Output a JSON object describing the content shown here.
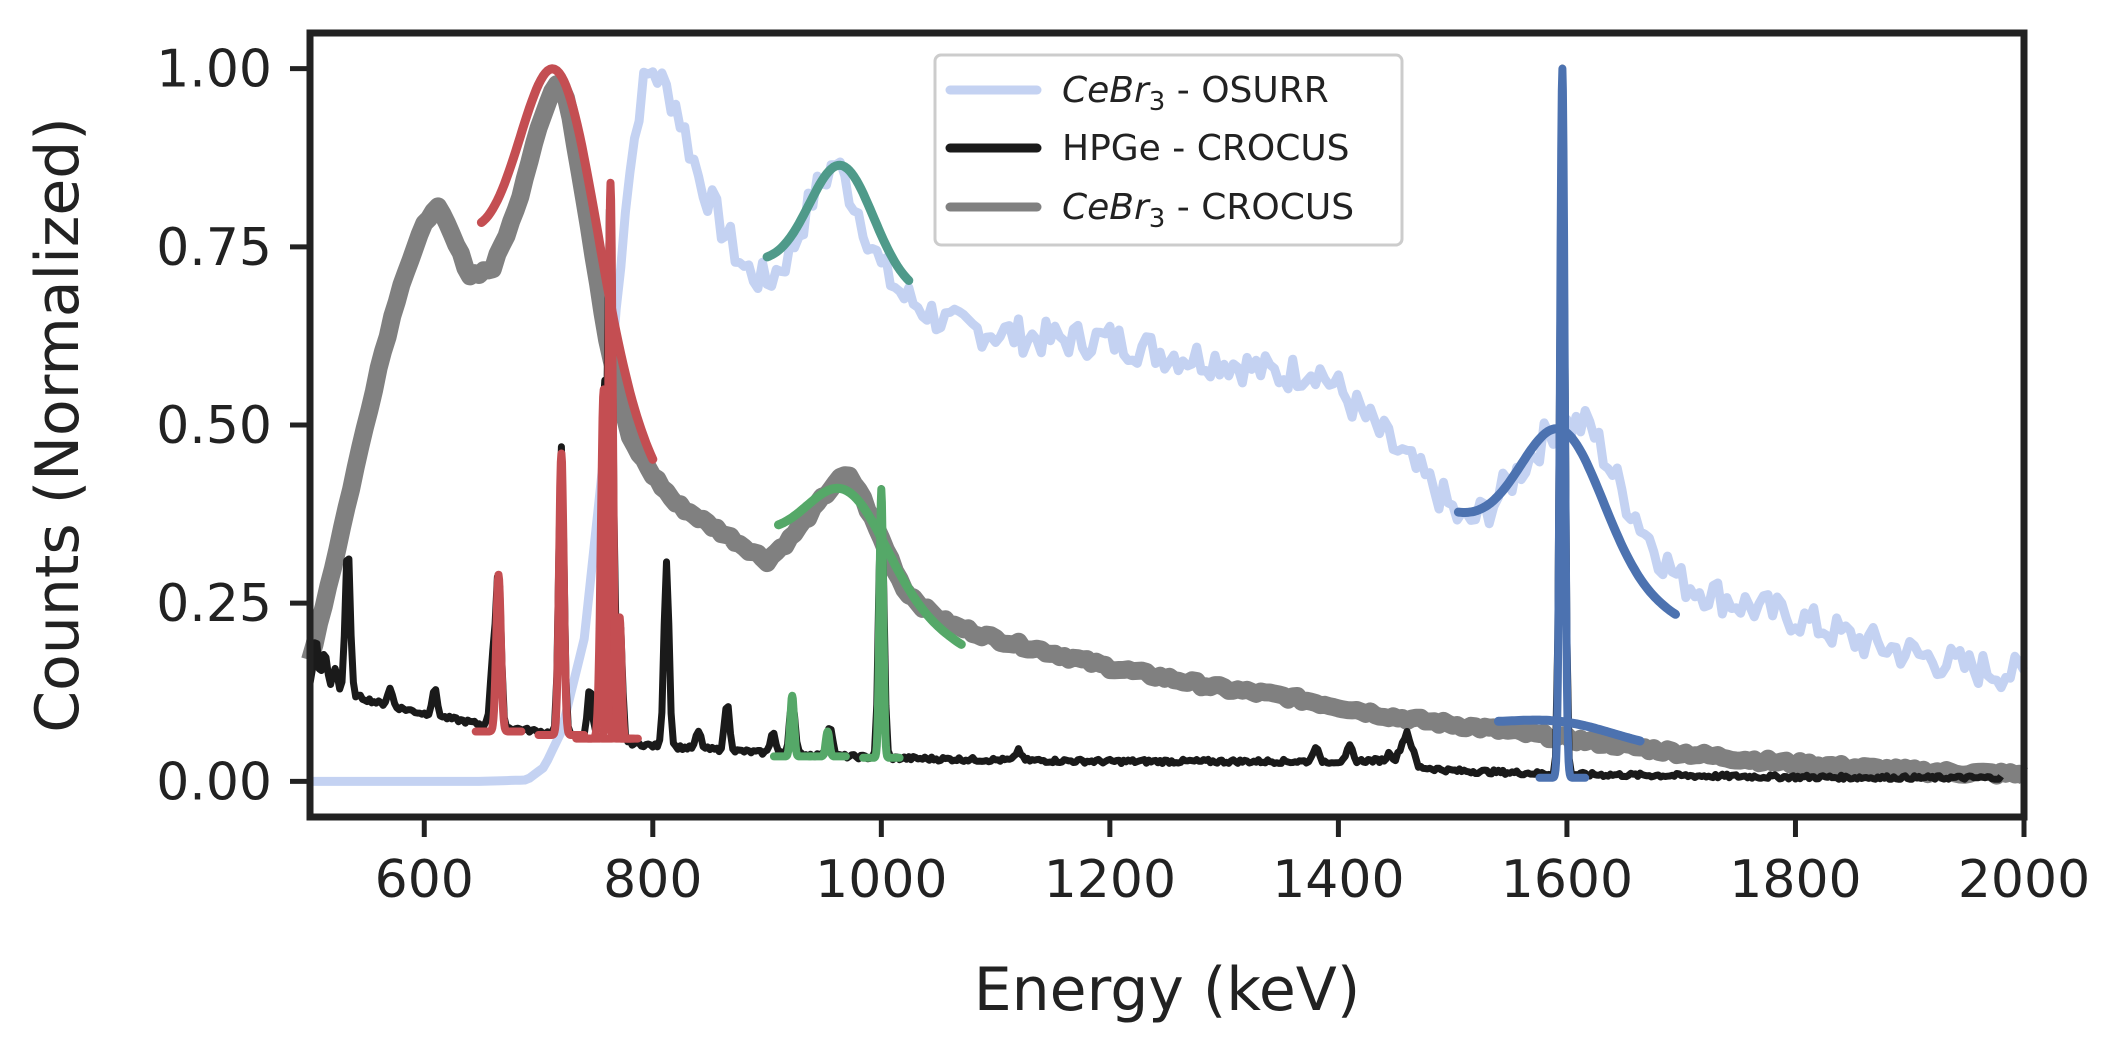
{
  "chart_data": {
    "type": "line",
    "title": "",
    "xlabel": "Energy (keV)",
    "ylabel": "Counts (Normalized)",
    "xlim": [
      500,
      2000
    ],
    "ylim": [
      -0.05,
      1.05
    ],
    "xticks": [
      600,
      800,
      1000,
      1200,
      1400,
      1600,
      1800,
      2000
    ],
    "xtick_labels": [
      "600",
      "800",
      "1000",
      "1200",
      "1400",
      "1600",
      "1800",
      "2000"
    ],
    "yticks": [
      0.0,
      0.25,
      0.5,
      0.75,
      1.0
    ],
    "ytick_labels": [
      "0.00",
      "0.25",
      "0.50",
      "0.75",
      "1.00"
    ],
    "grid": false,
    "legend_position": "top-center",
    "legend": [
      {
        "series": "osurr",
        "label_italic": "CeBr",
        "label_sub": "3",
        "label_rest": " - OSURR"
      },
      {
        "series": "hpge",
        "label_italic": "",
        "label_sub": "",
        "label_rest": "HPGe - CROCUS"
      },
      {
        "series": "crocus",
        "label_italic": "CeBr",
        "label_sub": "3",
        "label_rest": " - CROCUS"
      }
    ],
    "series": [
      {
        "name": "CeBr3 - OSURR",
        "color": "#c4d2f2",
        "noise": 0.025,
        "x": [
          500,
          650,
          690,
          705,
          720,
          740,
          760,
          775,
          790,
          800,
          820,
          840,
          860,
          880,
          900,
          920,
          940,
          960,
          980,
          1000,
          1020,
          1040,
          1060,
          1100,
          1150,
          1200,
          1250,
          1300,
          1350,
          1380,
          1400,
          1430,
          1460,
          1490,
          1510,
          1530,
          1560,
          1590,
          1620,
          1650,
          1680,
          1700,
          1750,
          1800,
          1850,
          1900,
          1950,
          2000
        ],
        "y": [
          0.0,
          0.0,
          0.002,
          0.02,
          0.07,
          0.2,
          0.5,
          0.8,
          0.97,
          1.0,
          0.95,
          0.85,
          0.78,
          0.72,
          0.7,
          0.74,
          0.82,
          0.87,
          0.8,
          0.72,
          0.68,
          0.66,
          0.64,
          0.63,
          0.62,
          0.62,
          0.6,
          0.59,
          0.57,
          0.58,
          0.55,
          0.5,
          0.45,
          0.4,
          0.36,
          0.38,
          0.44,
          0.5,
          0.5,
          0.4,
          0.32,
          0.28,
          0.25,
          0.23,
          0.2,
          0.18,
          0.16,
          0.15
        ]
      },
      {
        "name": "HPGe - CROCUS",
        "color": "#1a1a1a",
        "x": [
          500,
          540,
          560,
          600,
          650,
          700,
          750,
          800,
          900,
          1000,
          1100,
          1200,
          1300,
          1400,
          1450,
          1460,
          1470,
          1500,
          1600,
          1700,
          1800,
          1900,
          1980
        ],
        "y": [
          0.13,
          0.12,
          0.11,
          0.095,
          0.08,
          0.07,
          0.06,
          0.05,
          0.04,
          0.033,
          0.03,
          0.028,
          0.028,
          0.028,
          0.03,
          0.07,
          0.02,
          0.015,
          0.01,
          0.008,
          0.006,
          0.005,
          0.005
        ],
        "peaks": [
          {
            "e": 505,
            "h": 0.2
          },
          {
            "e": 513,
            "h": 0.18
          },
          {
            "e": 522,
            "h": 0.16
          },
          {
            "e": 533,
            "h": 0.33
          },
          {
            "e": 570,
            "h": 0.13
          },
          {
            "e": 609,
            "h": 0.13
          },
          {
            "e": 660,
            "h": 0.17
          },
          {
            "e": 665,
            "h": 0.29
          },
          {
            "e": 720,
            "h": 0.47
          },
          {
            "e": 745,
            "h": 0.13
          },
          {
            "e": 757,
            "h": 0.55
          },
          {
            "e": 763,
            "h": 0.84
          },
          {
            "e": 771,
            "h": 0.23
          },
          {
            "e": 812,
            "h": 0.31
          },
          {
            "e": 840,
            "h": 0.07
          },
          {
            "e": 865,
            "h": 0.11
          },
          {
            "e": 905,
            "h": 0.07
          },
          {
            "e": 922,
            "h": 0.12
          },
          {
            "e": 955,
            "h": 0.08
          },
          {
            "e": 1000,
            "h": 0.41
          },
          {
            "e": 1120,
            "h": 0.045
          },
          {
            "e": 1380,
            "h": 0.05
          },
          {
            "e": 1410,
            "h": 0.05
          },
          {
            "e": 1445,
            "h": 0.04
          },
          {
            "e": 1596,
            "h": 1.0
          }
        ]
      },
      {
        "name": "CeBr3 - CROCUS",
        "color": "#808080",
        "x": [
          500,
          520,
          540,
          560,
          580,
          600,
          610,
          620,
          640,
          660,
          680,
          700,
          715,
          725,
          740,
          760,
          780,
          800,
          820,
          850,
          880,
          900,
          920,
          940,
          960,
          970,
          980,
          1000,
          1020,
          1040,
          1060,
          1080,
          1100,
          1150,
          1200,
          1250,
          1300,
          1350,
          1400,
          1450,
          1500,
          1550,
          1600,
          1650,
          1700,
          1750,
          1800,
          1850,
          1900,
          1950,
          2000
        ],
        "y": [
          0.17,
          0.3,
          0.44,
          0.58,
          0.7,
          0.78,
          0.81,
          0.78,
          0.71,
          0.72,
          0.8,
          0.92,
          0.98,
          0.96,
          0.82,
          0.62,
          0.48,
          0.43,
          0.39,
          0.36,
          0.33,
          0.31,
          0.34,
          0.38,
          0.42,
          0.43,
          0.41,
          0.34,
          0.27,
          0.24,
          0.22,
          0.21,
          0.2,
          0.18,
          0.16,
          0.145,
          0.13,
          0.12,
          0.105,
          0.09,
          0.08,
          0.07,
          0.06,
          0.05,
          0.04,
          0.032,
          0.025,
          0.02,
          0.015,
          0.012,
          0.01
        ]
      }
    ],
    "fits": [
      {
        "name": "fit-osurr-960",
        "color": "#4f9a8a",
        "type": "gauss",
        "mu": 965,
        "sigma": 28,
        "amp": 0.16,
        "base0": 0.725,
        "base1": 0.685,
        "x0": 900,
        "x1": 1025
      },
      {
        "name": "fit-osurr-1596",
        "color": "#4c72b0",
        "type": "gauss",
        "mu": 1596,
        "sigma": 36,
        "amp": 0.19,
        "base0": 0.37,
        "base1": 0.23,
        "x0": 1505,
        "x1": 1695
      },
      {
        "name": "fit-crocus-720",
        "color": "#c44e52",
        "type": "gauss",
        "mu": 718,
        "sigma": 34,
        "amp": 0.4,
        "base0": 0.73,
        "base1": 0.43,
        "x0": 650,
        "x1": 800
      },
      {
        "name": "fit-crocus-970",
        "color": "#55a868",
        "type": "gauss",
        "mu": 970,
        "sigma": 35,
        "amp": 0.13,
        "base0": 0.33,
        "base1": 0.19,
        "x0": 910,
        "x1": 1070
      },
      {
        "name": "fit-crocus-1596",
        "color": "#4c72b0",
        "type": "gauss",
        "mu": 1596,
        "sigma": 45,
        "amp": 0.02,
        "base0": 0.075,
        "base1": 0.05,
        "x0": 1540,
        "x1": 1665
      }
    ],
    "fit_peaks": [
      {
        "color": "#c44e52",
        "e": 665,
        "h": 0.29,
        "w": 5,
        "base": 0.07
      },
      {
        "color": "#c44e52",
        "e": 720,
        "h": 0.46,
        "w": 5,
        "base": 0.065
      },
      {
        "color": "#c44e52",
        "e": 757,
        "h": 0.55,
        "w": 6,
        "base": 0.06
      },
      {
        "color": "#c44e52",
        "e": 763,
        "h": 0.84,
        "w": 5,
        "base": 0.06
      },
      {
        "color": "#c44e52",
        "e": 771,
        "h": 0.23,
        "w": 4,
        "base": 0.06
      },
      {
        "color": "#55a868",
        "e": 922,
        "h": 0.12,
        "w": 4,
        "base": 0.035
      },
      {
        "color": "#55a868",
        "e": 953,
        "h": 0.07,
        "w": 4,
        "base": 0.035
      },
      {
        "color": "#55a868",
        "e": 1000,
        "h": 0.41,
        "w": 4,
        "base": 0.033
      },
      {
        "color": "#4c72b0",
        "e": 1596,
        "h": 1.0,
        "w": 5,
        "base": 0.005
      }
    ]
  }
}
